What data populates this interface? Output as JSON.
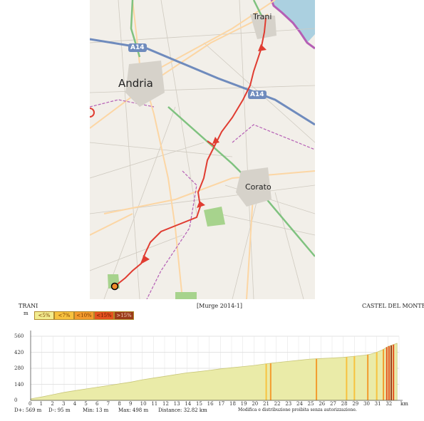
{
  "map": {
    "places": [
      {
        "key": "trani",
        "name": "Trani"
      },
      {
        "key": "andria",
        "name": "Andria"
      },
      {
        "key": "corato",
        "name": "Corato"
      }
    ],
    "road_shields": [
      "A14",
      "A14"
    ],
    "colors": {
      "route": "#e03c31",
      "motorway": "#6f8bbd",
      "green_road": "#7fc27f",
      "boundary": "#b55fb5",
      "sea": "#abd0e0",
      "park": "#a7d38d"
    }
  },
  "profile": {
    "start_name": "TRANI",
    "title": "[Murge 2014-1]",
    "end_name": "CASTEL DEL MONTE",
    "y_unit": "m",
    "x_unit": "km",
    "legend": [
      {
        "label": "<5%",
        "color": "#f2ec8f"
      },
      {
        "label": "<7%",
        "color": "#f7c23e"
      },
      {
        "label": "<10%",
        "color": "#f39b2d"
      },
      {
        "label": "<15%",
        "color": "#e5521f"
      },
      {
        "label": ">15%",
        "color": "#9b3b1a"
      }
    ],
    "y_ticks": [
      "560",
      "420",
      "280",
      "140",
      "0"
    ],
    "x_ticks": [
      "0",
      "1",
      "2",
      "3",
      "4",
      "5",
      "6",
      "7",
      "8",
      "9",
      "10",
      "11",
      "12",
      "13",
      "14",
      "15",
      "16",
      "17",
      "18",
      "19",
      "20",
      "21",
      "22",
      "23",
      "24",
      "25",
      "26",
      "27",
      "28",
      "29",
      "30",
      "31",
      "32"
    ],
    "stats": {
      "d_plus": "D+: 569 m",
      "d_minus": "D-: 95 m",
      "min": "Min: 13 m",
      "max": "Max: 498 m",
      "distance": "Distance: 32.82 km",
      "notice": "Modifica e distribuzione proibita senza autorizzazione."
    }
  },
  "chart_data": {
    "type": "area",
    "title": "[Murge 2014-1]",
    "xlabel": "km",
    "ylabel": "m",
    "xlim": [
      0,
      33
    ],
    "ylim": [
      0,
      560
    ],
    "grid": true,
    "x": [
      0,
      1,
      2,
      3,
      4,
      5,
      6,
      7,
      8,
      9,
      10,
      11,
      12,
      13,
      14,
      15,
      16,
      17,
      18,
      19,
      20,
      21,
      22,
      23,
      24,
      25,
      26,
      27,
      28,
      29,
      30,
      30.5,
      31,
      31.5,
      32,
      32.82
    ],
    "y": [
      13,
      30,
      50,
      70,
      85,
      100,
      115,
      130,
      145,
      160,
      180,
      195,
      210,
      225,
      240,
      250,
      262,
      275,
      285,
      295,
      305,
      318,
      330,
      340,
      350,
      360,
      365,
      370,
      375,
      385,
      395,
      405,
      420,
      440,
      470,
      498
    ]
  }
}
